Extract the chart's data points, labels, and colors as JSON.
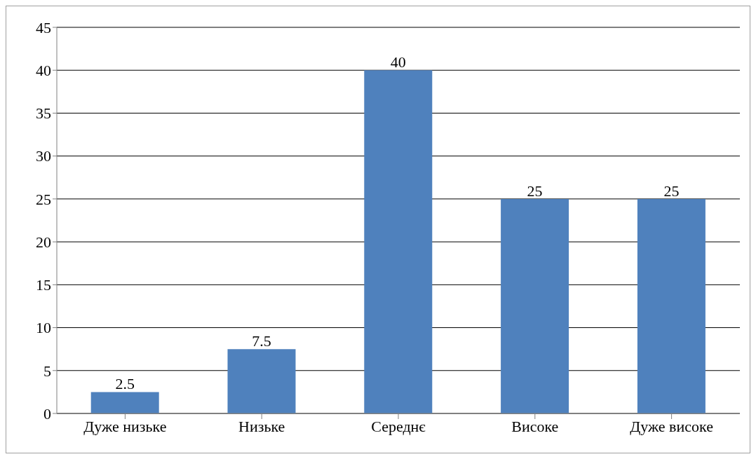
{
  "chart_data": {
    "type": "bar",
    "categories": [
      "Дуже низьке",
      "Низьке",
      "Середнє",
      "Високе",
      "Дуже високе"
    ],
    "values": [
      2.5,
      7.5,
      40,
      25,
      25
    ],
    "color": "#4f81bd",
    "ylim": [
      0,
      45
    ],
    "yticks": [
      0,
      5,
      10,
      15,
      20,
      25,
      30,
      35,
      40,
      45
    ],
    "grid": "y",
    "data_labels": true
  }
}
